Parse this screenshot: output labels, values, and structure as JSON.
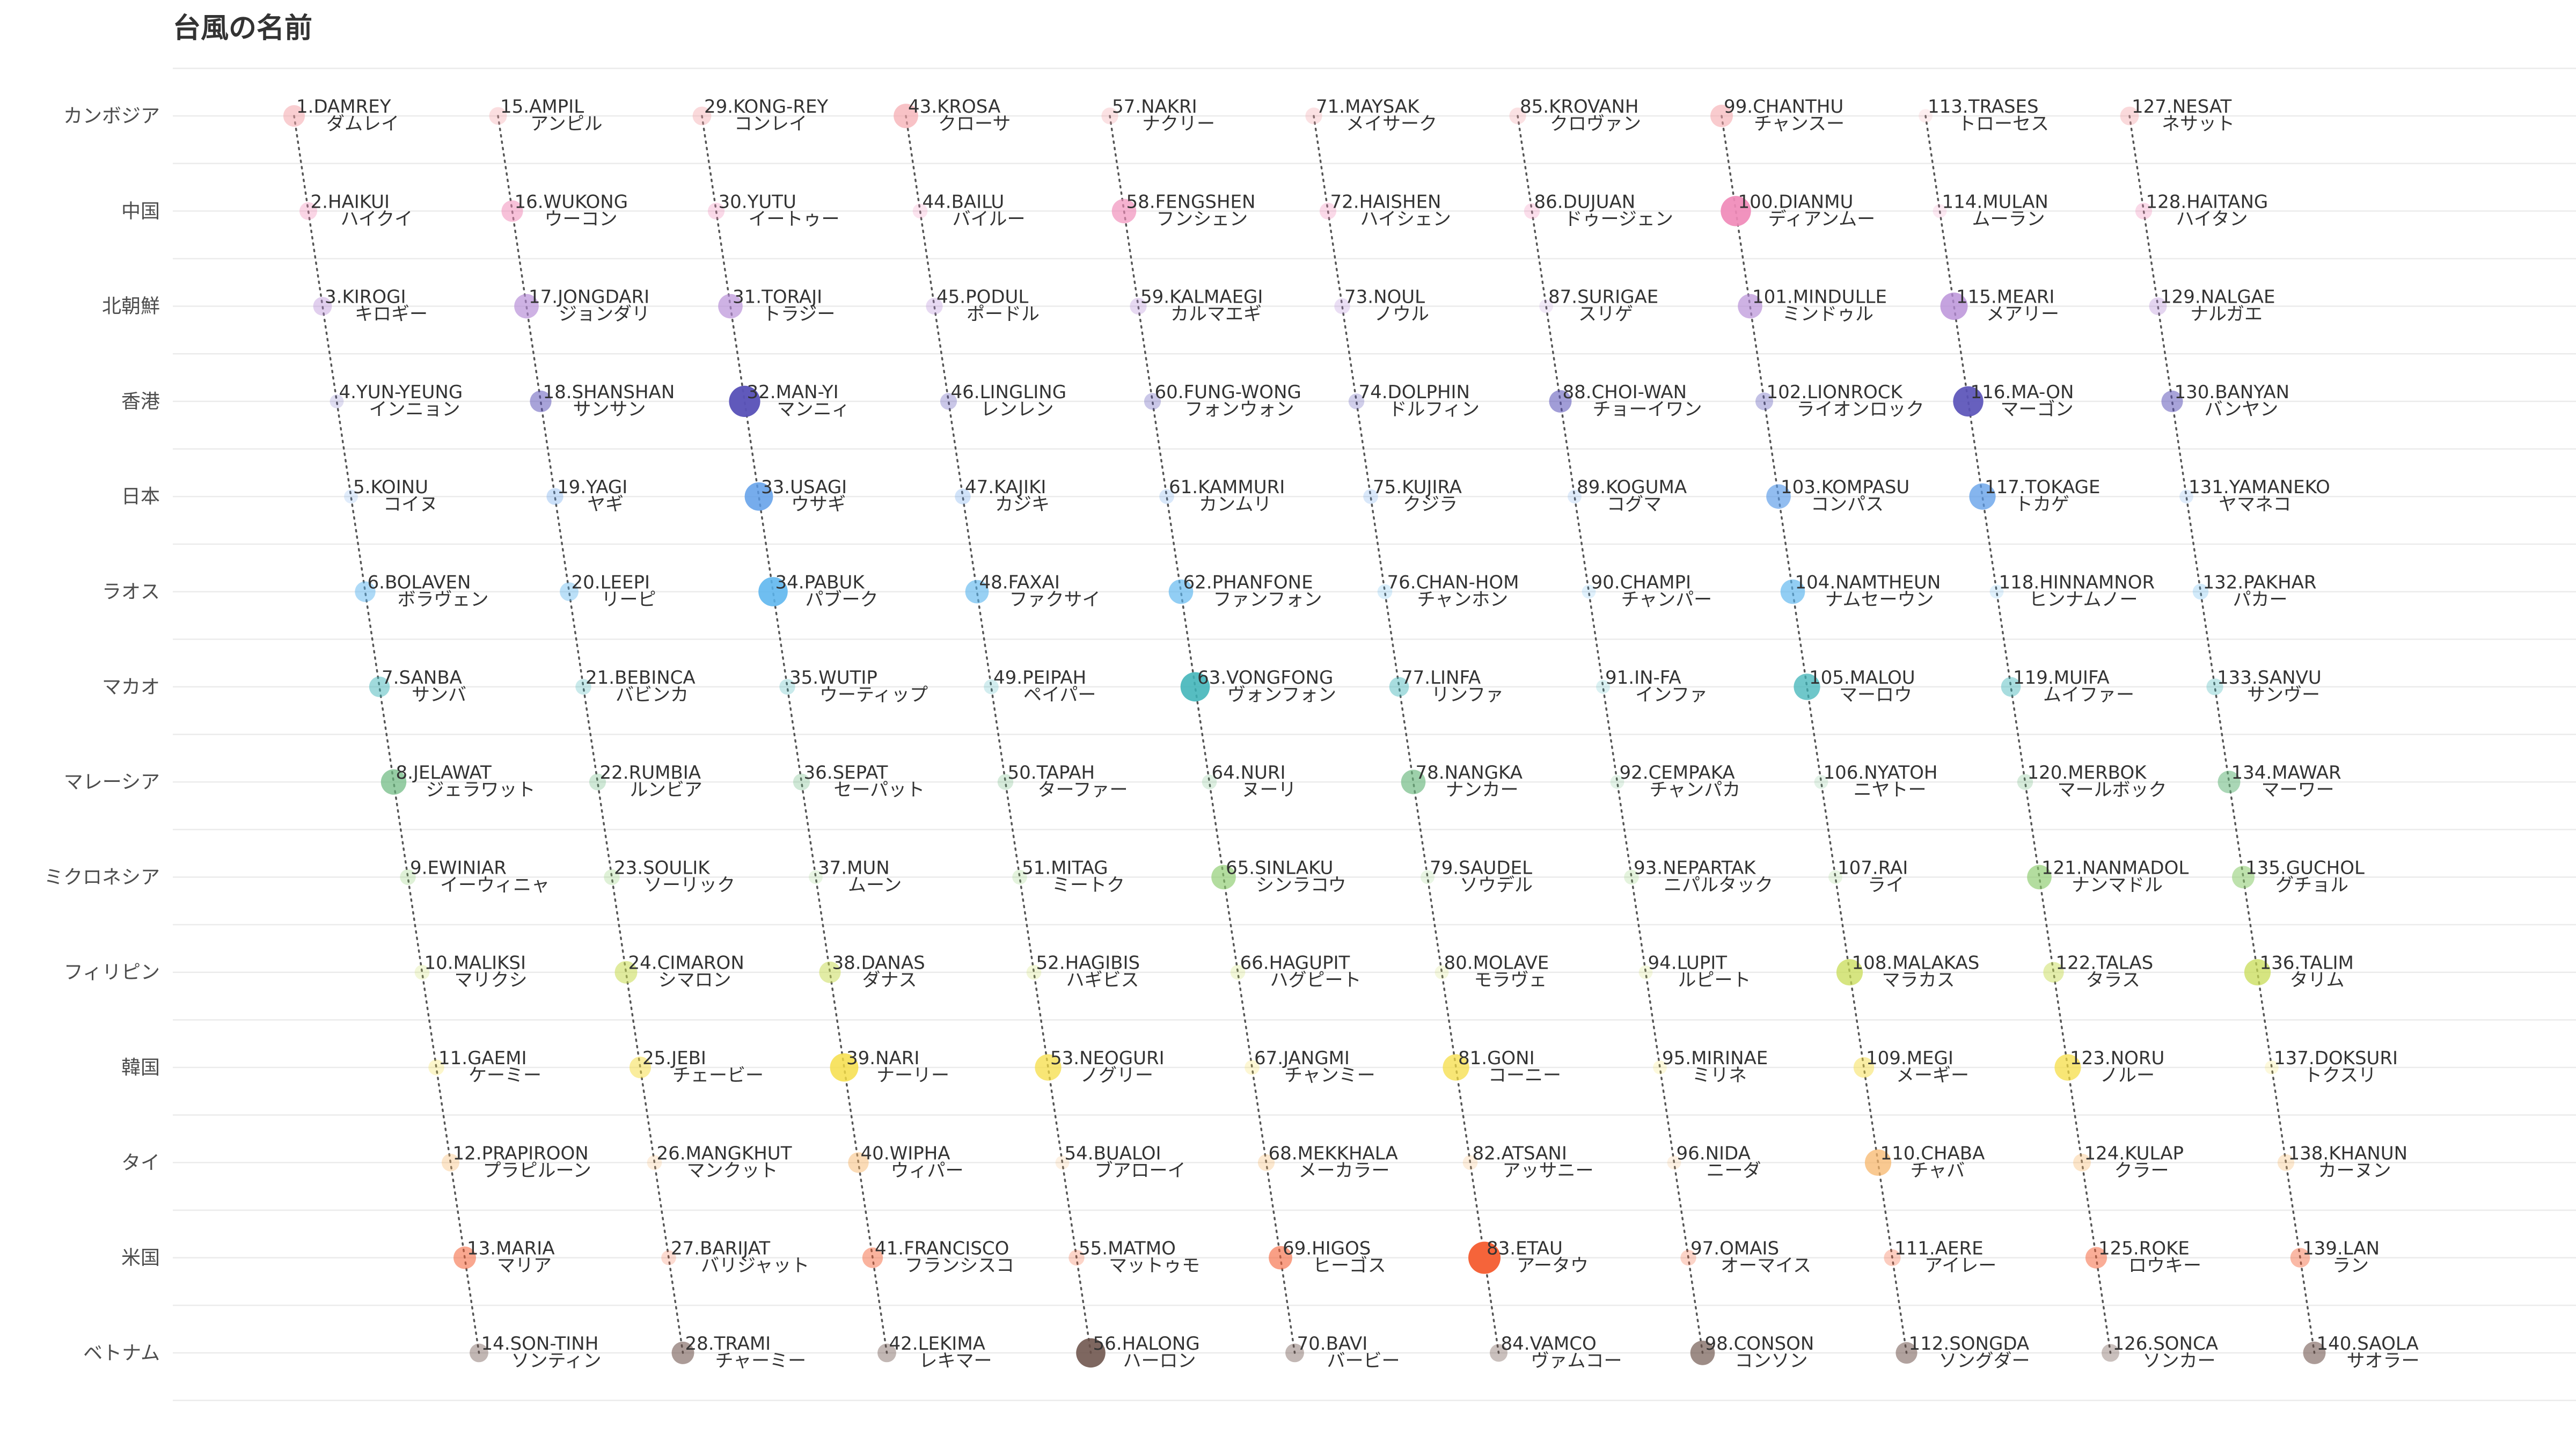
{
  "chart_data": {
    "type": "scatter",
    "title": "台風の名前",
    "countries": [
      "カンボジア",
      "中国",
      "北朝鮮",
      "香港",
      "日本",
      "ラオス",
      "マカオ",
      "マレーシア",
      "ミクロネシア",
      "フィリピン",
      "韓国",
      "タイ",
      "米国",
      "ベトナム"
    ],
    "colors": [
      "#f4a3a8",
      "#f08ab8",
      "#b58ad6",
      "#5a52b8",
      "#5a9be8",
      "#5ab4ee",
      "#3db3b8",
      "#6ab87e",
      "#8ccc6e",
      "#c8dc55",
      "#f5dd45",
      "#f7b66a",
      "#f5643a",
      "#6b5048"
    ],
    "points": [
      {
        "id": 1,
        "en": "1.DAMREY",
        "jp": "ダムレイ",
        "w": 0.45
      },
      {
        "id": 2,
        "en": "2.HAIKUI",
        "jp": "ハイクイ",
        "w": 0.25
      },
      {
        "id": 3,
        "en": "3.KIROGI",
        "jp": "キロギー",
        "w": 0.3
      },
      {
        "id": 4,
        "en": "4.YUN-YEUNG",
        "jp": "インニョン",
        "w": 0.05
      },
      {
        "id": 5,
        "en": "5.KOINU",
        "jp": "コイヌ",
        "w": 0.05
      },
      {
        "id": 6,
        "en": "6.BOLAVEN",
        "jp": "ボラヴェン",
        "w": 0.4
      },
      {
        "id": 7,
        "en": "7.SANBA",
        "jp": "サンバ",
        "w": 0.4
      },
      {
        "id": 8,
        "en": "8.JELAWAT",
        "jp": "ジェラワット",
        "w": 0.65
      },
      {
        "id": 9,
        "en": "9.EWINIAR",
        "jp": "イーウィニャ",
        "w": 0.15
      },
      {
        "id": 10,
        "en": "10.MALIKSI",
        "jp": "マリクシ",
        "w": 0.1
      },
      {
        "id": 11,
        "en": "11.GAEMI",
        "jp": "ケーミー",
        "w": 0.15
      },
      {
        "id": 12,
        "en": "12.PRAPIROON",
        "jp": "プラピルーン",
        "w": 0.25
      },
      {
        "id": 13,
        "en": "13.MARIA",
        "jp": "マリア",
        "w": 0.5
      },
      {
        "id": 14,
        "en": "14.SON-TINH",
        "jp": "ソンティン",
        "w": 0.3
      },
      {
        "id": 15,
        "en": "15.AMPIL",
        "jp": "アンピル",
        "w": 0.25
      },
      {
        "id": 16,
        "en": "16.WUKONG",
        "jp": "ウーコン",
        "w": 0.45
      },
      {
        "id": 17,
        "en": "17.JONGDARI",
        "jp": "ジョンダリ",
        "w": 0.6
      },
      {
        "id": 18,
        "en": "18.SHANSHAN",
        "jp": "サンサン",
        "w": 0.45
      },
      {
        "id": 19,
        "en": "19.YAGI",
        "jp": "ヤギ",
        "w": 0.2
      },
      {
        "id": 20,
        "en": "20.LEEPI",
        "jp": "リーピ",
        "w": 0.3
      },
      {
        "id": 21,
        "en": "21.BEBINCA",
        "jp": "バビンカ",
        "w": 0.15
      },
      {
        "id": 22,
        "en": "22.RUMBIA",
        "jp": "ルンビア",
        "w": 0.2
      },
      {
        "id": 23,
        "en": "23.SOULIK",
        "jp": "ソーリック",
        "w": 0.15
      },
      {
        "id": 24,
        "en": "24.CIMARON",
        "jp": "シマロン",
        "w": 0.5
      },
      {
        "id": 25,
        "en": "25.JEBI",
        "jp": "チェービー",
        "w": 0.45
      },
      {
        "id": 26,
        "en": "26.MANGKHUT",
        "jp": "マンクット",
        "w": 0.1
      },
      {
        "id": 27,
        "en": "27.BARIJAT",
        "jp": "バリジャット",
        "w": 0.1
      },
      {
        "id": 28,
        "en": "28.TRAMI",
        "jp": "チャーミー",
        "w": 0.5
      },
      {
        "id": 29,
        "en": "29.KONG-REY",
        "jp": "コンレイ",
        "w": 0.3
      },
      {
        "id": 30,
        "en": "30.YUTU",
        "jp": "イートゥー",
        "w": 0.2
      },
      {
        "id": 31,
        "en": "31.TORAJI",
        "jp": "トラジー",
        "w": 0.6
      },
      {
        "id": 32,
        "en": "32.MAN-YI",
        "jp": "マンニィ",
        "w": 0.95
      },
      {
        "id": 33,
        "en": "33.USAGI",
        "jp": "ウサギ",
        "w": 0.8
      },
      {
        "id": 34,
        "en": "34.PABUK",
        "jp": "パブーク",
        "w": 0.85
      },
      {
        "id": 35,
        "en": "35.WUTIP",
        "jp": "ウーティップ",
        "w": 0.15
      },
      {
        "id": 36,
        "en": "36.SEPAT",
        "jp": "セーパット",
        "w": 0.2
      },
      {
        "id": 37,
        "en": "37.MUN",
        "jp": "ムーン",
        "w": 0.05
      },
      {
        "id": 38,
        "en": "38.DANAS",
        "jp": "ダナス",
        "w": 0.45
      },
      {
        "id": 39,
        "en": "39.NARI",
        "jp": "ナーリー",
        "w": 0.8
      },
      {
        "id": 40,
        "en": "40.WIPHA",
        "jp": "ウィパー",
        "w": 0.4
      },
      {
        "id": 41,
        "en": "41.FRANCISCO",
        "jp": "フランシスコ",
        "w": 0.4
      },
      {
        "id": 42,
        "en": "42.LEKIMA",
        "jp": "レキマー",
        "w": 0.3
      },
      {
        "id": 43,
        "en": "43.KROSA",
        "jp": "クローサ",
        "w": 0.6
      },
      {
        "id": 44,
        "en": "44.BAILU",
        "jp": "バイルー",
        "w": 0.1
      },
      {
        "id": 45,
        "en": "45.PODUL",
        "jp": "ポードル",
        "w": 0.2
      },
      {
        "id": 46,
        "en": "46.LINGLING",
        "jp": "レンレン",
        "w": 0.2
      },
      {
        "id": 47,
        "en": "47.KAJIKI",
        "jp": "カジキ",
        "w": 0.15
      },
      {
        "id": 48,
        "en": "48.FAXAI",
        "jp": "ファクサイ",
        "w": 0.55
      },
      {
        "id": 49,
        "en": "49.PEIPAH",
        "jp": "ペイパー",
        "w": 0.1
      },
      {
        "id": 50,
        "en": "50.TAPAH",
        "jp": "ターファー",
        "w": 0.15
      },
      {
        "id": 51,
        "en": "51.MITAG",
        "jp": "ミートク",
        "w": 0.1
      },
      {
        "id": 52,
        "en": "52.HAGIBIS",
        "jp": "ハギビス",
        "w": 0.1
      },
      {
        "id": 53,
        "en": "53.NEOGURI",
        "jp": "ノグリー",
        "w": 0.7
      },
      {
        "id": 54,
        "en": "54.BUALOI",
        "jp": "ブアローイ",
        "w": 0.05
      },
      {
        "id": 55,
        "en": "55.MATMO",
        "jp": "マットゥモ",
        "w": 0.15
      },
      {
        "id": 56,
        "en": "56.HALONG",
        "jp": "ハーロン",
        "w": 0.85
      },
      {
        "id": 57,
        "en": "57.NAKRI",
        "jp": "ナクリー",
        "w": 0.2
      },
      {
        "id": 58,
        "en": "58.FENGSHEN",
        "jp": "フンシェン",
        "w": 0.6
      },
      {
        "id": 59,
        "en": "59.KALMAEGI",
        "jp": "カルマエギ",
        "w": 0.2
      },
      {
        "id": 60,
        "en": "60.FUNG-WONG",
        "jp": "フォンウォン",
        "w": 0.2
      },
      {
        "id": 61,
        "en": "61.KAMMURI",
        "jp": "カンムリ",
        "w": 0.1
      },
      {
        "id": 62,
        "en": "62.PHANFONE",
        "jp": "ファンフォン",
        "w": 0.6
      },
      {
        "id": 63,
        "en": "63.VONGFONG",
        "jp": "ヴォンフォン",
        "w": 0.85
      },
      {
        "id": 64,
        "en": "64.NURI",
        "jp": "ヌーリ",
        "w": 0.1
      },
      {
        "id": 65,
        "en": "65.SINLAKU",
        "jp": "シンラコウ",
        "w": 0.6
      },
      {
        "id": 66,
        "en": "66.HAGUPIT",
        "jp": "ハグピート",
        "w": 0.1
      },
      {
        "id": 67,
        "en": "67.JANGMI",
        "jp": "チャンミー",
        "w": 0.1
      },
      {
        "id": 68,
        "en": "68.MEKKHALA",
        "jp": "メーカラー",
        "w": 0.2
      },
      {
        "id": 69,
        "en": "69.HIGOS",
        "jp": "ヒーゴス",
        "w": 0.55
      },
      {
        "id": 70,
        "en": "70.BAVI",
        "jp": "バービー",
        "w": 0.3
      },
      {
        "id": 71,
        "en": "71.MAYSAK",
        "jp": "メイサーク",
        "w": 0.2
      },
      {
        "id": 72,
        "en": "72.HAISHEN",
        "jp": "ハイシェン",
        "w": 0.2
      },
      {
        "id": 73,
        "en": "73.NOUL",
        "jp": "ノウル",
        "w": 0.15
      },
      {
        "id": 74,
        "en": "74.DOLPHIN",
        "jp": "ドルフィン",
        "w": 0.15
      },
      {
        "id": 75,
        "en": "75.KUJIRA",
        "jp": "クジラ",
        "w": 0.1
      },
      {
        "id": 76,
        "en": "76.CHAN-HOM",
        "jp": "チャンホン",
        "w": 0.1
      },
      {
        "id": 77,
        "en": "77.LINFA",
        "jp": "リンファ",
        "w": 0.35
      },
      {
        "id": 78,
        "en": "78.NANGKA",
        "jp": "ナンカー",
        "w": 0.6
      },
      {
        "id": 79,
        "en": "79.SAUDEL",
        "jp": "ソウデル",
        "w": 0.05
      },
      {
        "id": 80,
        "en": "80.MOLAVE",
        "jp": "モラヴェ",
        "w": 0.05
      },
      {
        "id": 81,
        "en": "81.GONI",
        "jp": "コーニー",
        "w": 0.7
      },
      {
        "id": 82,
        "en": "82.ATSANI",
        "jp": "アッサニー",
        "w": 0.1
      },
      {
        "id": 83,
        "en": "83.ETAU",
        "jp": "アータウ",
        "w": 1.0
      },
      {
        "id": 84,
        "en": "84.VAMCO",
        "jp": "ヴァムコー",
        "w": 0.25
      },
      {
        "id": 85,
        "en": "85.KROVANH",
        "jp": "クロヴァン",
        "w": 0.2
      },
      {
        "id": 86,
        "en": "86.DUJUAN",
        "jp": "ドゥージェン",
        "w": 0.15
      },
      {
        "id": 87,
        "en": "87.SURIGAE",
        "jp": "スリゲ",
        "w": 0.05
      },
      {
        "id": 88,
        "en": "88.CHOI-WAN",
        "jp": "チョーイワン",
        "w": 0.5
      },
      {
        "id": 89,
        "en": "89.KOGUMA",
        "jp": "コグマ",
        "w": 0.05
      },
      {
        "id": 90,
        "en": "90.CHAMPI",
        "jp": "チャンパー",
        "w": 0.05
      },
      {
        "id": 91,
        "en": "91.IN-FA",
        "jp": "インファ",
        "w": 0.05
      },
      {
        "id": 92,
        "en": "92.CEMPAKA",
        "jp": "チャンパカ",
        "w": 0.05
      },
      {
        "id": 93,
        "en": "93.NEPARTAK",
        "jp": "ニパルタック",
        "w": 0.1
      },
      {
        "id": 94,
        "en": "94.LUPIT",
        "jp": "ルピート",
        "w": 0.05
      },
      {
        "id": 95,
        "en": "95.MIRINAE",
        "jp": "ミリネ",
        "w": 0.05
      },
      {
        "id": 96,
        "en": "96.NIDA",
        "jp": "ニーダ",
        "w": 0.05
      },
      {
        "id": 97,
        "en": "97.OMAIS",
        "jp": "オーマイス",
        "w": 0.15
      },
      {
        "id": 98,
        "en": "98.CONSON",
        "jp": "コンソン",
        "w": 0.6
      },
      {
        "id": 99,
        "en": "99.CHANTHU",
        "jp": "チャンスー",
        "w": 0.5
      },
      {
        "id": 100,
        "en": "100.DIANMU",
        "jp": "ディアンムー",
        "w": 0.9
      },
      {
        "id": 101,
        "en": "101.MINDULLE",
        "jp": "ミンドゥル",
        "w": 0.6
      },
      {
        "id": 102,
        "en": "102.LIONROCK",
        "jp": "ライオンロック",
        "w": 0.25
      },
      {
        "id": 103,
        "en": "103.KOMPASU",
        "jp": "コンパス",
        "w": 0.6
      },
      {
        "id": 104,
        "en": "104.NAMTHEUN",
        "jp": "ナムセーウン",
        "w": 0.6
      },
      {
        "id": 105,
        "en": "105.MALOU",
        "jp": "マーロウ",
        "w": 0.7
      },
      {
        "id": 106,
        "en": "106.NYATOH",
        "jp": "ニヤトー",
        "w": 0.05
      },
      {
        "id": 107,
        "en": "107.RAI",
        "jp": "ライ",
        "w": 0.05
      },
      {
        "id": 108,
        "en": "108.MALAKAS",
        "jp": "マラカス",
        "w": 0.7
      },
      {
        "id": 109,
        "en": "109.MEGI",
        "jp": "メーギー",
        "w": 0.4
      },
      {
        "id": 110,
        "en": "110.CHABA",
        "jp": "チャバ",
        "w": 0.7
      },
      {
        "id": 111,
        "en": "111.AERE",
        "jp": "アイレー",
        "w": 0.2
      },
      {
        "id": 112,
        "en": "112.SONGDA",
        "jp": "ソングダー",
        "w": 0.45
      },
      {
        "id": 113,
        "en": "113.TRASES",
        "jp": "トローセス",
        "w": 0.05
      },
      {
        "id": 114,
        "en": "114.MULAN",
        "jp": "ムーラン",
        "w": 0.05
      },
      {
        "id": 115,
        "en": "115.MEARI",
        "jp": "メアリー",
        "w": 0.75
      },
      {
        "id": 116,
        "en": "116.MA-ON",
        "jp": "マーゴン",
        "w": 0.9
      },
      {
        "id": 117,
        "en": "117.TOKAGE",
        "jp": "トカゲ",
        "w": 0.7
      },
      {
        "id": 118,
        "en": "118.HINNAMNOR",
        "jp": "ヒンナムノー",
        "w": 0.05
      },
      {
        "id": 119,
        "en": "119.MUIFA",
        "jp": "ムイファー",
        "w": 0.35
      },
      {
        "id": 120,
        "en": "120.MERBOK",
        "jp": "マールボック",
        "w": 0.15
      },
      {
        "id": 121,
        "en": "121.NANMADOL",
        "jp": "ナンマドル",
        "w": 0.6
      },
      {
        "id": 122,
        "en": "122.TALAS",
        "jp": "タラス",
        "w": 0.4
      },
      {
        "id": 123,
        "en": "123.NORU",
        "jp": "ノルー",
        "w": 0.7
      },
      {
        "id": 124,
        "en": "124.KULAP",
        "jp": "クラー",
        "w": 0.25
      },
      {
        "id": 125,
        "en": "125.ROKE",
        "jp": "ロウキー",
        "w": 0.45
      },
      {
        "id": 126,
        "en": "126.SONCA",
        "jp": "ソンカー",
        "w": 0.25
      },
      {
        "id": 127,
        "en": "127.NESAT",
        "jp": "ネサット",
        "w": 0.3
      },
      {
        "id": 128,
        "en": "128.HAITANG",
        "jp": "ハイタン",
        "w": 0.2
      },
      {
        "id": 129,
        "en": "129.NALGAE",
        "jp": "ナルガエ",
        "w": 0.25
      },
      {
        "id": 130,
        "en": "130.BANYAN",
        "jp": "バンヤン",
        "w": 0.45
      },
      {
        "id": 131,
        "en": "131.YAMANEKO",
        "jp": "ヤマネコ",
        "w": 0.05
      },
      {
        "id": 132,
        "en": "132.PAKHAR",
        "jp": "パカー",
        "w": 0.15
      },
      {
        "id": 133,
        "en": "133.SANVU",
        "jp": "サンヴー",
        "w": 0.2
      },
      {
        "id": 134,
        "en": "134.MAWAR",
        "jp": "マーワー",
        "w": 0.5
      },
      {
        "id": 135,
        "en": "135.GUCHOL",
        "jp": "グチョル",
        "w": 0.5
      },
      {
        "id": 136,
        "en": "136.TALIM",
        "jp": "タリム",
        "w": 0.7
      },
      {
        "id": 137,
        "en": "137.DOKSURI",
        "jp": "トクスリ",
        "w": 0.05
      },
      {
        "id": 138,
        "en": "138.KHANUN",
        "jp": "カーヌン",
        "w": 0.2
      },
      {
        "id": 139,
        "en": "139.LAN",
        "jp": "ラン",
        "w": 0.35
      },
      {
        "id": 140,
        "en": "140.SAOLA",
        "jp": "サオラー",
        "w": 0.5
      }
    ]
  }
}
